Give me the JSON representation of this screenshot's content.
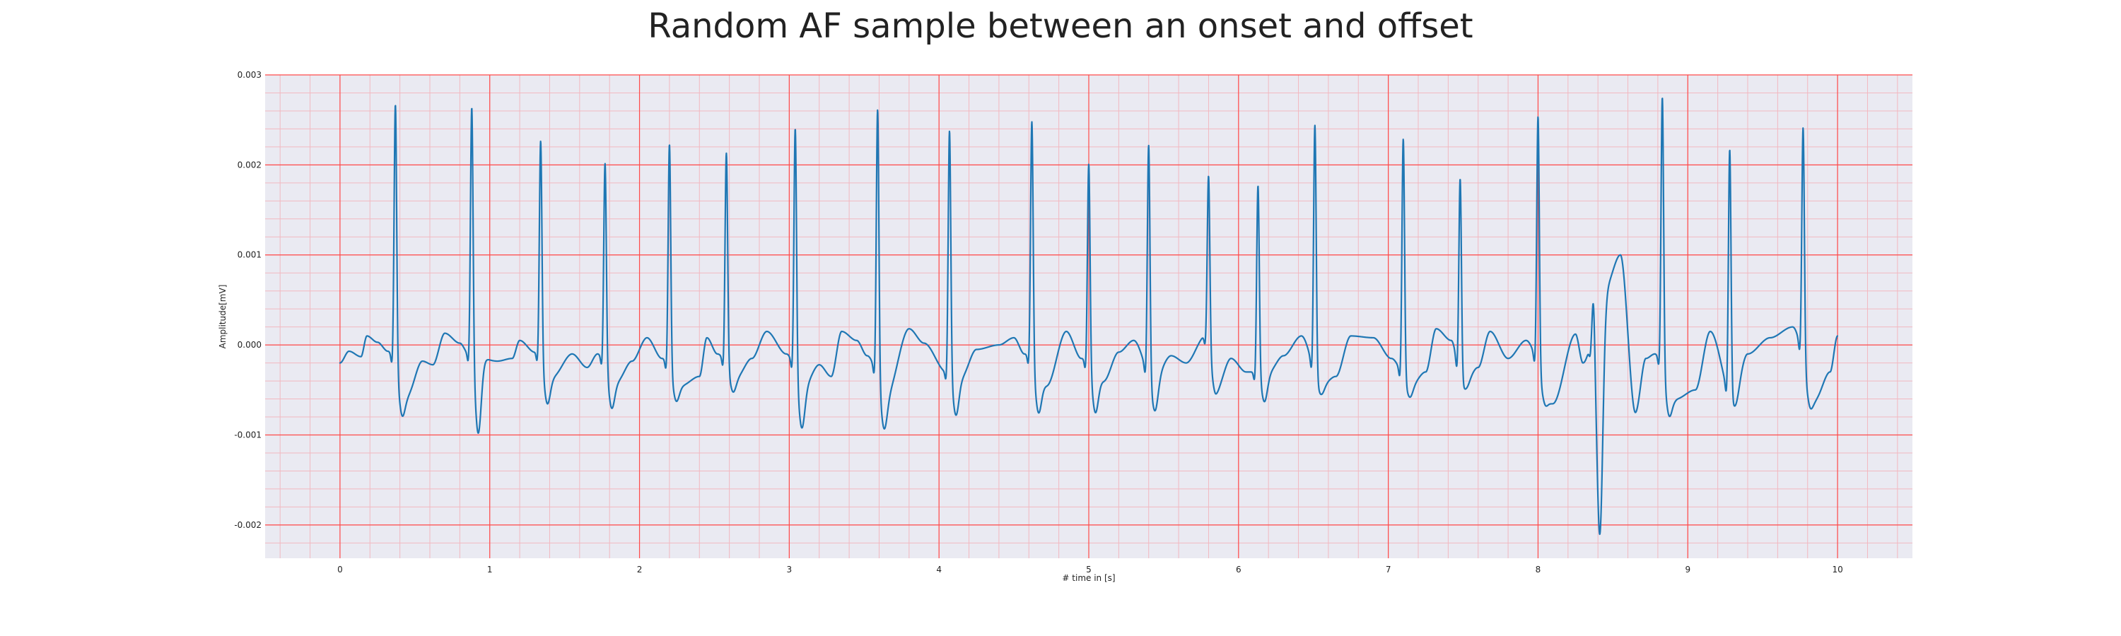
{
  "chart_data": {
    "type": "line",
    "title": "Random AF sample between an onset and offset",
    "xlabel": "# time in [s]",
    "ylabel": "Amplitude[mV]",
    "xlim": [
      -0.5,
      10.5
    ],
    "ylim": [
      -0.00237,
      0.003
    ],
    "x_ticks": [
      0,
      1,
      2,
      3,
      4,
      5,
      6,
      7,
      8,
      9,
      10
    ],
    "x_tick_labels": [
      "0",
      "1",
      "2",
      "3",
      "4",
      "5",
      "6",
      "7",
      "8",
      "9",
      "10"
    ],
    "y_ticks": [
      -0.002,
      -0.001,
      0.0,
      0.001,
      0.002,
      0.003
    ],
    "y_tick_labels": [
      "-0.002",
      "-0.001",
      "0.000",
      "0.001",
      "0.002",
      "0.003"
    ],
    "grid": true,
    "minor_grid": true,
    "colors": {
      "line": "#1f77b4",
      "plot_background": "#eaeaf2",
      "major_grid": "#ff4a4a",
      "minor_grid": "#f2b8c0"
    },
    "series": [
      {
        "x_start": 0,
        "x_end": 10,
        "baseline": [
          [
            0.0,
            -0.0002
          ],
          [
            0.06,
            -7e-05
          ],
          [
            0.14,
            -0.00013
          ],
          [
            0.18,
            0.0001
          ],
          [
            0.25,
            3e-05
          ],
          [
            0.32,
            -7e-05
          ],
          [
            0.45,
            -0.00055
          ],
          [
            0.55,
            -0.00018
          ],
          [
            0.62,
            -0.00022
          ],
          [
            0.7,
            0.00013
          ],
          [
            0.8,
            2e-05
          ],
          [
            0.86,
            -0.0001
          ],
          [
            1.05,
            -0.00018
          ],
          [
            1.15,
            -0.00015
          ],
          [
            1.2,
            5e-05
          ],
          [
            1.3,
            -8e-05
          ],
          [
            1.42,
            -0.00035
          ],
          [
            1.55,
            -0.0001
          ],
          [
            1.65,
            -0.00025
          ],
          [
            1.72,
            -0.0001
          ],
          [
            1.85,
            -0.0004
          ],
          [
            1.95,
            -0.00018
          ],
          [
            2.05,
            8e-05
          ],
          [
            2.15,
            -0.00015
          ],
          [
            2.28,
            -0.00045
          ],
          [
            2.4,
            -0.00035
          ],
          [
            2.45,
            8e-05
          ],
          [
            2.52,
            -0.0001
          ],
          [
            2.65,
            -0.00035
          ],
          [
            2.75,
            -0.00015
          ],
          [
            2.85,
            0.00015
          ],
          [
            2.98,
            -0.0001
          ],
          [
            3.1,
            -0.00045
          ],
          [
            3.2,
            -0.00022
          ],
          [
            3.28,
            -0.00035
          ],
          [
            3.35,
            0.00015
          ],
          [
            3.45,
            5e-05
          ],
          [
            3.52,
            -0.00012
          ],
          [
            3.65,
            -0.00055
          ],
          [
            3.8,
            0.00018
          ],
          [
            3.9,
            2e-05
          ],
          [
            4.05,
            -0.0003
          ],
          [
            4.15,
            -0.00035
          ],
          [
            4.25,
            -5e-05
          ],
          [
            4.4,
            0.0
          ],
          [
            4.5,
            8e-05
          ],
          [
            4.57,
            -0.0001
          ],
          [
            4.72,
            -0.00045
          ],
          [
            4.85,
            0.00015
          ],
          [
            4.95,
            -0.00015
          ],
          [
            5.1,
            -0.0004
          ],
          [
            5.2,
            -8e-05
          ],
          [
            5.3,
            5e-05
          ],
          [
            5.43,
            -0.0004
          ],
          [
            5.55,
            -0.00012
          ],
          [
            5.65,
            -0.0002
          ],
          [
            5.78,
            0.0001
          ],
          [
            5.85,
            -0.0005
          ],
          [
            5.95,
            -0.00015
          ],
          [
            6.05,
            -0.0003
          ],
          [
            6.2,
            -0.0003
          ],
          [
            6.3,
            -0.00012
          ],
          [
            6.42,
            0.0001
          ],
          [
            6.55,
            -0.00045
          ],
          [
            6.65,
            -0.00035
          ],
          [
            6.75,
            0.0001
          ],
          [
            6.9,
            8e-05
          ],
          [
            7.02,
            -0.00015
          ],
          [
            7.15,
            -0.00045
          ],
          [
            7.25,
            -0.0003
          ],
          [
            7.32,
            0.00018
          ],
          [
            7.42,
            5e-05
          ],
          [
            7.5,
            -0.00045
          ],
          [
            7.6,
            -0.00025
          ],
          [
            7.68,
            0.00015
          ],
          [
            7.8,
            -0.00015
          ],
          [
            7.92,
            5e-05
          ],
          [
            8.1,
            -0.00065
          ],
          [
            8.25,
            0.00012
          ],
          [
            8.3,
            -0.0002
          ],
          [
            8.45,
            0.00065
          ],
          [
            8.55,
            0.001
          ],
          [
            8.65,
            -0.00075
          ],
          [
            8.72,
            -0.00015
          ],
          [
            8.78,
            -0.0001
          ],
          [
            8.92,
            -0.0006
          ],
          [
            9.05,
            -0.0005
          ],
          [
            9.15,
            0.00015
          ],
          [
            9.3,
            -0.0006
          ],
          [
            9.4,
            -0.0001
          ],
          [
            9.55,
            8e-05
          ],
          [
            9.7,
            0.0002
          ],
          [
            9.85,
            -0.0006
          ],
          [
            9.95,
            -0.0003
          ],
          [
            10.0,
            0.0001
          ]
        ],
        "beats": [
          {
            "t": 0.37,
            "peak": 0.0027,
            "trough": -0.00078
          },
          {
            "t": 0.88,
            "peak": 0.00272,
            "trough": -0.00098
          },
          {
            "t": 1.34,
            "peak": 0.0023,
            "trough": -0.00065
          },
          {
            "t": 1.77,
            "peak": 0.00205,
            "trough": -0.0007
          },
          {
            "t": 2.2,
            "peak": 0.00225,
            "trough": -0.00062
          },
          {
            "t": 2.58,
            "peak": 0.00215,
            "trough": -0.00052
          },
          {
            "t": 3.04,
            "peak": 0.00245,
            "trough": -0.00092
          },
          {
            "t": 3.59,
            "peak": 0.00265,
            "trough": -0.00093
          },
          {
            "t": 4.07,
            "peak": 0.00242,
            "trough": -0.00078
          },
          {
            "t": 4.62,
            "peak": 0.00252,
            "trough": -0.00075
          },
          {
            "t": 5.0,
            "peak": 0.00205,
            "trough": -0.00075
          },
          {
            "t": 5.4,
            "peak": 0.00225,
            "trough": -0.00073
          },
          {
            "t": 5.8,
            "peak": 0.00188,
            "trough": -0.00053
          },
          {
            "t": 6.13,
            "peak": 0.0018,
            "trough": -0.00063
          },
          {
            "t": 6.51,
            "peak": 0.00245,
            "trough": -0.00055
          },
          {
            "t": 7.1,
            "peak": 0.0023,
            "trough": -0.00058
          },
          {
            "t": 7.48,
            "peak": 0.00185,
            "trough": -0.00048
          },
          {
            "t": 8.0,
            "peak": 0.00255,
            "trough": -0.00065
          },
          {
            "t": 8.37,
            "peak": 0.0007,
            "trough": -0.0021
          },
          {
            "t": 8.83,
            "peak": 0.00278,
            "trough": -0.00078
          },
          {
            "t": 9.28,
            "peak": 0.00218,
            "trough": -0.00065
          },
          {
            "t": 9.77,
            "peak": 0.00243,
            "trough": -0.00068
          }
        ]
      }
    ]
  }
}
